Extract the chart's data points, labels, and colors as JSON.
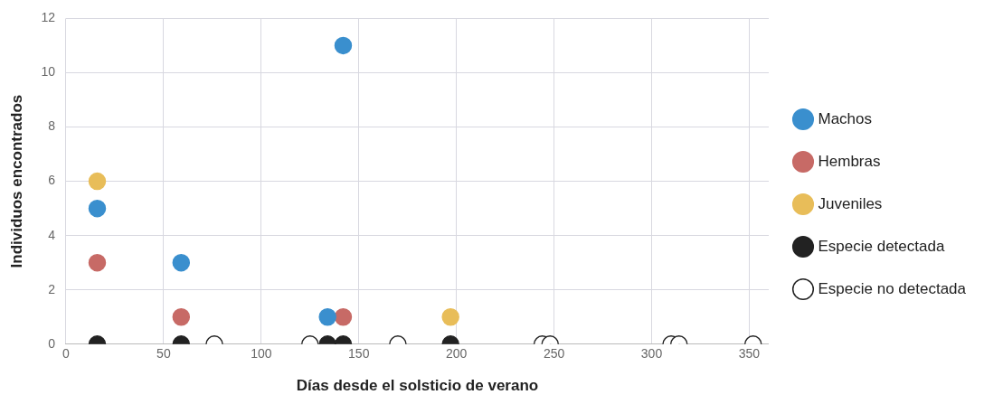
{
  "chart_data": {
    "type": "scatter",
    "xlabel": "Días desde el solsticio de verano",
    "ylabel": "Individuos encontrados",
    "xlim": [
      0,
      360
    ],
    "xticks": [
      0,
      50,
      100,
      150,
      200,
      250,
      300,
      350
    ],
    "ylim": [
      0,
      12
    ],
    "yticks": [
      0,
      2,
      4,
      6,
      8,
      10,
      12
    ],
    "grid": true,
    "legend": "right",
    "marker": "circle",
    "series": [
      {
        "name": "Machos",
        "color": "#3a8fce",
        "x": [
          16,
          59,
          134,
          142
        ],
        "values": [
          5,
          3,
          1,
          11
        ]
      },
      {
        "name": "Hembras",
        "color": "#c76a66",
        "x": [
          16,
          59,
          142
        ],
        "values": [
          3,
          1,
          1
        ]
      },
      {
        "name": "Juveniles",
        "color": "#e8bd59",
        "x": [
          16,
          197
        ],
        "values": [
          6,
          1
        ]
      },
      {
        "name": "Especie detectada",
        "color": "#222222",
        "x": [
          16,
          59,
          134,
          142,
          197
        ],
        "values": [
          0,
          0,
          0,
          0,
          0
        ]
      },
      {
        "name": "Especie no detectada",
        "color": "#ffffff",
        "x": [
          76,
          125,
          170,
          244,
          248,
          310,
          314,
          352
        ],
        "values": [
          0,
          0,
          0,
          0,
          0,
          0,
          0,
          0
        ]
      }
    ]
  }
}
